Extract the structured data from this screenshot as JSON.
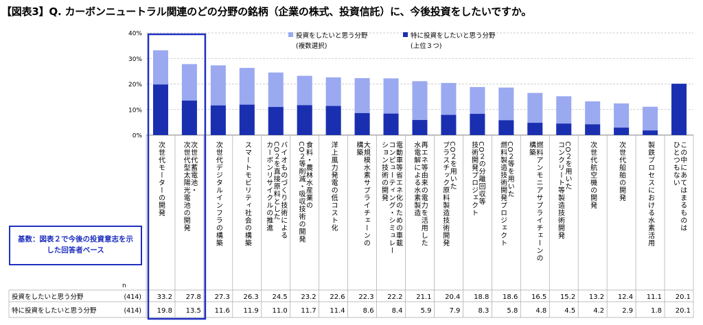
{
  "title": "【図表3】Q. カーボンニュートラル関連のどの分野の銘柄（企業の株式、投資信託）に、今後投資をしたいですか。",
  "base_note": "基数：図表２で今後の投資意志を示した回答者ベース",
  "table": {
    "n_header": "n",
    "n_value": "(414)",
    "row1_label": "投資をしたいと思う分野",
    "row2_label": "特に投資をしたいと思う分野"
  },
  "colors": {
    "light": "#9aa9f0",
    "dark": "#1a2fb0",
    "highlight_border": "#1f2fbf",
    "grid": "#bfbfbf"
  },
  "chart_data": {
    "type": "bar",
    "stacking": "overlay",
    "y_ticks": [
      "0%",
      "10%",
      "20%",
      "30%",
      "40%"
    ],
    "ylim": [
      0,
      40
    ],
    "legend_placement": "top-center",
    "legend": [
      {
        "label": "投資をしたいと思う分野",
        "sub": "(複数選択)"
      },
      {
        "label": "特に投資をしたいと思う分野",
        "sub": "(上位３つ)"
      }
    ],
    "categories": [
      "次世代モーターの開発",
      "次世代蓄電池・次世代型太陽光電池の開発",
      "次世代デジタルインフラの構築",
      "スマートモビリティ社会の構築",
      "バイオものづくり技術によるCO２を直接原料としたカーボンリサイクルの推進",
      "食料・農林水産業のCO２等削減・吸収技術の開発",
      "洋上風力発電の低コスト化",
      "大規模水素サプライチェーンの構築",
      "電動車等省エネ化のための車載コンピューティング・シミュレーション技術の開発",
      "再エネ等由来の電力を活用した水電解による水素製造",
      "CO２を用いたプラスチック原料製造技術開発",
      "CO２の分離回収等技術開発プロジェクト",
      "CO２等を用いた燃料製造技術開発プロジェクト",
      "燃料アンモニアサプライチェーンの構築",
      "CO２を用いたコンクリート等製造技術開発",
      "次世代航空機の開発",
      "次世代船舶の開発",
      "製鉄プロセスにおける水素活用",
      "この中にあてはまるものはひとつもない"
    ],
    "label_columns": [
      [
        "次世代モーターの開発"
      ],
      [
        "次世代蓄電池・",
        "次世代型太陽光電池の開発"
      ],
      [
        "次世代デジタルインフラの構築"
      ],
      [
        "スマートモビリティ社会の構築"
      ],
      [
        "バイオものづくり技術による",
        "CO２を直接原料とした",
        "カーボンリサイクルの推進"
      ],
      [
        "食料・農林水産業の",
        "CO２等削減・吸収技術の開発"
      ],
      [
        "洋上風力発電の低コスト化"
      ],
      [
        "大規模水素サプライチェーンの",
        "構築"
      ],
      [
        "電動車等省エネ化のための車載",
        "コンピューティング・シミュレー",
        "ション技術の開発"
      ],
      [
        "再エネ等由来の電力を活用した",
        "水電解による水素製造"
      ],
      [
        "CO２を用いた",
        "プラスチック原料製造技術開発"
      ],
      [
        "CO２の分離回収等",
        "技術開発プロジェクト"
      ],
      [
        "CO２等を用いた",
        "燃料製造技術開発プロジェクト"
      ],
      [
        "燃料アンモニアサプライチェーンの",
        "構築"
      ],
      [
        "CO２を用いた",
        "コンクリート等製造技術開発"
      ],
      [
        "次世代航空機の開発"
      ],
      [
        "次世代船舶の開発"
      ],
      [
        "製鉄プロセスにおける水素活用"
      ],
      [
        "この中にあてはまるものは",
        "ひとつもない"
      ]
    ],
    "series": [
      {
        "name": "投資をしたいと思う分野",
        "values": [
          33.2,
          27.8,
          27.3,
          26.3,
          24.5,
          23.2,
          22.6,
          22.3,
          22.2,
          21.1,
          20.4,
          18.8,
          18.6,
          16.5,
          15.2,
          13.2,
          12.4,
          11.1,
          20.1
        ]
      },
      {
        "name": "特に投資をしたいと思う分野",
        "values": [
          19.8,
          13.5,
          11.6,
          11.9,
          11.0,
          11.7,
          11.4,
          8.6,
          8.4,
          5.9,
          7.9,
          8.3,
          5.8,
          4.8,
          4.5,
          4.2,
          2.9,
          1.8,
          20.1
        ]
      }
    ],
    "highlighted_categories": [
      0,
      1
    ]
  }
}
